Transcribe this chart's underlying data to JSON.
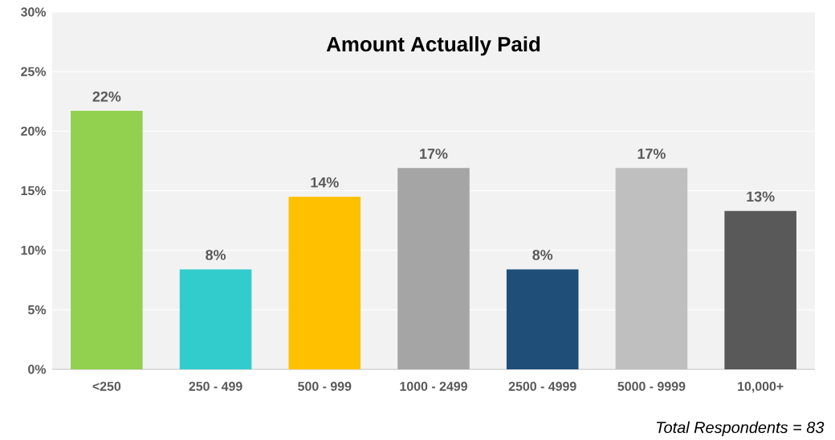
{
  "chart_data": {
    "type": "bar",
    "title": "Amount Actually Paid",
    "categories": [
      "<250",
      "250 - 499",
      "500 - 999",
      "1000 - 2499",
      "2500 - 4999",
      "5000 - 9999",
      "10,000+"
    ],
    "values": [
      21.7,
      8.4,
      14.5,
      16.9,
      8.4,
      16.9,
      13.3
    ],
    "value_labels": [
      "22%",
      "8%",
      "14%",
      "17%",
      "8%",
      "17%",
      "13%"
    ],
    "colors": [
      "#92d050",
      "#33cccc",
      "#ffc000",
      "#a5a5a5",
      "#1f4e79",
      "#bfbfbf",
      "#595959"
    ],
    "ylim": [
      0,
      30
    ],
    "yticks": [
      {
        "value": 0,
        "label": "0%"
      },
      {
        "value": 5,
        "label": "5%"
      },
      {
        "value": 10,
        "label": "10%"
      },
      {
        "value": 15,
        "label": "15%"
      },
      {
        "value": 20,
        "label": "20%"
      },
      {
        "value": 25,
        "label": "25%"
      },
      {
        "value": 30,
        "label": "30%"
      }
    ],
    "grid": "y",
    "annotations": [
      "*Total Respondents = 83*"
    ]
  }
}
